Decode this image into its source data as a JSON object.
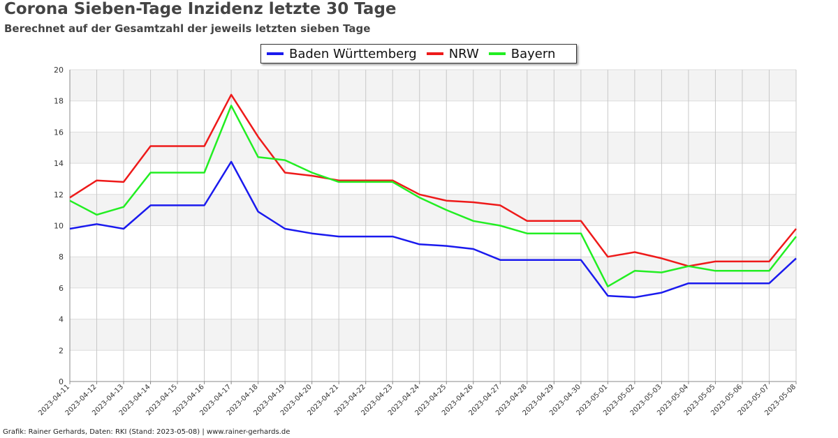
{
  "header": {
    "title": "Corona Sieben-Tage Inzidenz letzte 30 Tage",
    "subtitle": "Berechnet auf der Gesamtzahl der jeweils letzten sieben Tage"
  },
  "footer": {
    "credit": "Grafik: Rainer Gerhards, Daten: RKI (Stand: 2023-05-08) | www.rainer-gerhards.de"
  },
  "chart_data": {
    "type": "line",
    "x": [
      "2023-04-11",
      "2023-04-12",
      "2023-04-13",
      "2023-04-14",
      "2023-04-15",
      "2023-04-16",
      "2023-04-17",
      "2023-04-18",
      "2023-04-19",
      "2023-04-20",
      "2023-04-21",
      "2023-04-22",
      "2023-04-23",
      "2023-04-24",
      "2023-04-25",
      "2023-04-26",
      "2023-04-27",
      "2023-04-28",
      "2023-04-29",
      "2023-04-30",
      "2023-05-01",
      "2023-05-02",
      "2023-05-03",
      "2023-05-04",
      "2023-05-05",
      "2023-05-06",
      "2023-05-07",
      "2023-05-08"
    ],
    "series": [
      {
        "name": "Baden Württemberg",
        "color": "#1a1aee",
        "values": [
          9.8,
          10.1,
          9.8,
          11.3,
          11.3,
          11.3,
          14.1,
          10.9,
          9.8,
          9.5,
          9.3,
          9.3,
          9.3,
          8.8,
          8.7,
          8.5,
          7.8,
          7.8,
          7.8,
          7.8,
          5.5,
          5.4,
          5.7,
          6.3,
          6.3,
          6.3,
          6.3,
          7.9
        ]
      },
      {
        "name": "NRW",
        "color": "#ee1a1a",
        "values": [
          11.8,
          12.9,
          12.8,
          15.1,
          15.1,
          15.1,
          18.4,
          15.7,
          13.4,
          13.2,
          12.9,
          12.9,
          12.9,
          12.0,
          11.6,
          11.5,
          11.3,
          10.3,
          10.3,
          10.3,
          8.0,
          8.3,
          7.9,
          7.4,
          7.7,
          7.7,
          7.7,
          9.8
        ]
      },
      {
        "name": "Bayern",
        "color": "#22ee22",
        "values": [
          11.6,
          10.7,
          11.2,
          13.4,
          13.4,
          13.4,
          17.7,
          14.4,
          14.2,
          13.4,
          12.8,
          12.8,
          12.8,
          11.8,
          11.0,
          10.3,
          10.0,
          9.5,
          9.5,
          9.5,
          6.1,
          7.1,
          7.0,
          7.4,
          7.1,
          7.1,
          7.1,
          9.3
        ]
      }
    ],
    "yticks": [
      0,
      2,
      4,
      6,
      8,
      10,
      12,
      14,
      16,
      18,
      20
    ],
    "ylim": [
      0,
      20
    ],
    "grid": true,
    "legend_position": "top-center"
  }
}
